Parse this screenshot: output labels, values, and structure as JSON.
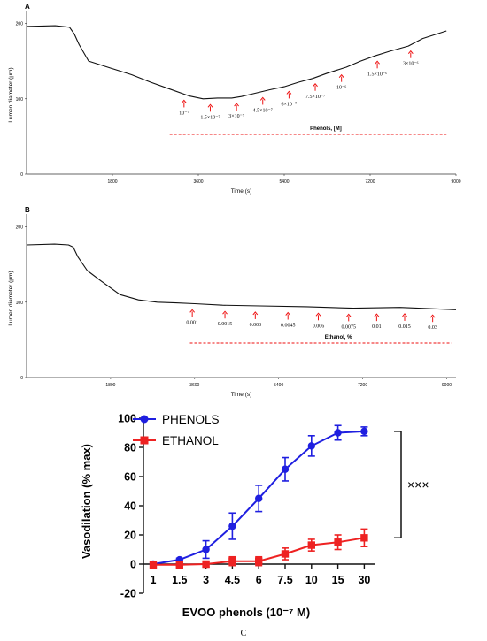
{
  "chart_data": [
    {
      "panel_label": "A",
      "type": "line",
      "xlabel": "Time (s)",
      "ylabel": "Lumen diameter (μm)",
      "xticks": [
        "1800",
        "3600",
        "5400",
        "7200",
        "9000"
      ],
      "yticks": [
        "0",
        "100",
        "200"
      ],
      "xlim": [
        0,
        9000
      ],
      "ylim": [
        0,
        210
      ],
      "trace": {
        "x": [
          0,
          600,
          900,
          1000,
          1100,
          1300,
          1700,
          2200,
          2600,
          3000,
          3400,
          3700,
          4000,
          4300,
          4500,
          4700,
          5100,
          5400,
          5700,
          6000,
          6300,
          6700,
          7000,
          7300,
          7600,
          8000,
          8300,
          8800
        ],
        "y": [
          196,
          197,
          195,
          186,
          172,
          150,
          142,
          132,
          122,
          113,
          104,
          100,
          101,
          101,
          103,
          106,
          112,
          116,
          122,
          127,
          134,
          142,
          150,
          157,
          163,
          170,
          180,
          190
        ]
      },
      "annotations": [
        {
          "text": "10⁻⁷",
          "x": 3300
        },
        {
          "text": "1.5×10⁻⁷",
          "x": 3850
        },
        {
          "text": "3×10⁻⁷",
          "x": 4400
        },
        {
          "text": "4.5×10⁻⁷",
          "x": 4950
        },
        {
          "text": "6×10⁻⁷",
          "x": 5500
        },
        {
          "text": "7.5×10⁻⁷",
          "x": 6050
        },
        {
          "text": "10⁻⁶",
          "x": 6600
        },
        {
          "text": "1.5×10⁻⁶",
          "x": 7350
        },
        {
          "text": "3×10⁻⁶",
          "x": 8050
        }
      ],
      "treatment_label": "Phenols, [M]",
      "treatment_range": [
        3000,
        8800
      ]
    },
    {
      "panel_label": "B",
      "type": "line",
      "xlabel": "Time (s)",
      "ylabel": "Lumen diameter (μm)",
      "xticks": [
        "1800",
        "3600",
        "5400",
        "7200",
        "9000"
      ],
      "yticks": [
        "0",
        "100",
        "200"
      ],
      "xlim": [
        0,
        9200
      ],
      "ylim": [
        0,
        210
      ],
      "trace": {
        "x": [
          0,
          600,
          900,
          1000,
          1100,
          1300,
          1600,
          2000,
          2400,
          2800,
          3200,
          3600,
          4200,
          5000,
          6000,
          7000,
          8000,
          9200
        ],
        "y": [
          176,
          177,
          176,
          173,
          160,
          142,
          128,
          110,
          103,
          100,
          99,
          98,
          96,
          95,
          94,
          92,
          93,
          90
        ]
      },
      "annotations": [
        {
          "text": "0.001",
          "x": 3550
        },
        {
          "text": "0.0015",
          "x": 4250
        },
        {
          "text": "0.003",
          "x": 4900
        },
        {
          "text": "0.0045",
          "x": 5600
        },
        {
          "text": "0.006",
          "x": 6250
        },
        {
          "text": "0.0075",
          "x": 6900
        },
        {
          "text": "0.01",
          "x": 7500
        },
        {
          "text": "0.015",
          "x": 8100
        },
        {
          "text": "0.03",
          "x": 8700
        }
      ],
      "treatment_label": "Ethanol, %",
      "treatment_range": [
        3500,
        9100
      ]
    },
    {
      "panel_label": "C",
      "type": "line",
      "xlabel": "EVOO phenols (10⁻⁷ M)",
      "ylabel": "Vasodilation (% max)",
      "categories": [
        "1",
        "1.5",
        "3",
        "4.5",
        "6",
        "7.5",
        "10",
        "15",
        "30"
      ],
      "yticks": [
        "-20",
        "0",
        "20",
        "40",
        "60",
        "80",
        "100"
      ],
      "ylim": [
        -20,
        100
      ],
      "legend_position": "top-left",
      "series": [
        {
          "name": "PHENOLS",
          "color": "#1f1fe0",
          "marker": "circle",
          "values": [
            0,
            3,
            10,
            26,
            45,
            65,
            81,
            90,
            91
          ],
          "errors": [
            1,
            1,
            6,
            9,
            9,
            8,
            7,
            5,
            3
          ]
        },
        {
          "name": "ETHANOL",
          "color": "#ee2222",
          "marker": "square",
          "values": [
            -0.5,
            -0.5,
            0,
            2,
            2,
            7,
            13,
            15,
            18
          ],
          "errors": [
            1,
            1,
            2,
            3,
            3,
            4,
            4,
            5,
            6
          ]
        }
      ],
      "significance": "×××"
    }
  ]
}
